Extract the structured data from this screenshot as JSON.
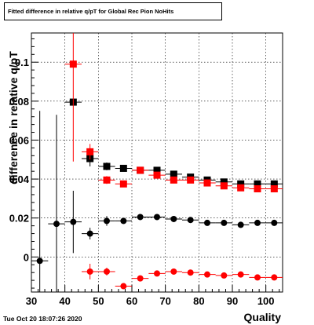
{
  "title": "Fitted difference in relative q/pT for Global Rec Pion NoHits",
  "timestamp": "Tue Oct 20 18:07:26 2020",
  "chart_data": {
    "type": "scatter",
    "title": "Fitted difference in relative q/pT for Global Rec Pion NoHits",
    "xlabel": "Quality",
    "ylabel": "difference in relative q/pT",
    "xlim": [
      30,
      105
    ],
    "ylim": [
      -0.018,
      0.115
    ],
    "grid": true,
    "x_ticks": [
      30,
      40,
      50,
      60,
      70,
      80,
      90,
      100
    ],
    "x_tick_labels": [
      "30",
      "40",
      "50",
      "60",
      "70",
      "80",
      "90",
      "100"
    ],
    "y_ticks": [
      0,
      0.02,
      0.04,
      0.06,
      0.08,
      0.1
    ],
    "y_tick_labels": [
      "0",
      "0.02",
      "0.04",
      "0.06",
      "0.08",
      "0.1"
    ],
    "series": [
      {
        "color": "#000000",
        "marker": "circle",
        "points": [
          {
            "x": 32.5,
            "y": -0.002,
            "err": 0.077
          },
          {
            "x": 37.5,
            "y": 0.017,
            "err": 0.056
          },
          {
            "x": 42.5,
            "y": 0.018,
            "err": 0.016
          },
          {
            "x": 47.5,
            "y": 0.012,
            "err": 0.003
          },
          {
            "x": 52.5,
            "y": 0.0185,
            "err": 0.0025
          },
          {
            "x": 57.5,
            "y": 0.0185,
            "err": 0.0015
          },
          {
            "x": 62.5,
            "y": 0.0205,
            "err": 0.001
          },
          {
            "x": 67.5,
            "y": 0.0205,
            "err": 0.001
          },
          {
            "x": 72.5,
            "y": 0.0195,
            "err": 0.001
          },
          {
            "x": 77.5,
            "y": 0.019,
            "err": 0.001
          },
          {
            "x": 82.5,
            "y": 0.0175,
            "err": 0.001
          },
          {
            "x": 87.5,
            "y": 0.0175,
            "err": 0.001
          },
          {
            "x": 92.5,
            "y": 0.0165,
            "err": 0.001
          },
          {
            "x": 97.5,
            "y": 0.0175,
            "err": 0.001
          },
          {
            "x": 102.5,
            "y": 0.0175,
            "err": 0.001
          }
        ]
      },
      {
        "color": "#000000",
        "marker": "square",
        "points": [
          {
            "x": 42.5,
            "y": 0.0795,
            "err": 0.0
          },
          {
            "x": 47.5,
            "y": 0.0505,
            "err": 0.004
          },
          {
            "x": 52.5,
            "y": 0.0465,
            "err": 0.002
          },
          {
            "x": 57.5,
            "y": 0.0455,
            "err": 0.001
          },
          {
            "x": 62.5,
            "y": 0.0445,
            "err": 0.001
          },
          {
            "x": 67.5,
            "y": 0.0445,
            "err": 0.001
          },
          {
            "x": 72.5,
            "y": 0.0425,
            "err": 0.001
          },
          {
            "x": 77.5,
            "y": 0.041,
            "err": 0.001
          },
          {
            "x": 82.5,
            "y": 0.0395,
            "err": 0.001
          },
          {
            "x": 87.5,
            "y": 0.0385,
            "err": 0.001
          },
          {
            "x": 92.5,
            "y": 0.0375,
            "err": 0.001
          },
          {
            "x": 97.5,
            "y": 0.0375,
            "err": 0.001
          },
          {
            "x": 102.5,
            "y": 0.0375,
            "err": 0.001
          }
        ]
      },
      {
        "color": "#ff0000",
        "marker": "square",
        "points": [
          {
            "x": 42.5,
            "y": 0.099,
            "err": 0.05
          },
          {
            "x": 47.5,
            "y": 0.054,
            "err": 0.004
          },
          {
            "x": 52.5,
            "y": 0.0395,
            "err": 0.002
          },
          {
            "x": 57.5,
            "y": 0.0375,
            "err": 0.001
          },
          {
            "x": 62.5,
            "y": 0.0445,
            "err": 0.001
          },
          {
            "x": 67.5,
            "y": 0.042,
            "err": 0.001
          },
          {
            "x": 72.5,
            "y": 0.0395,
            "err": 0.001
          },
          {
            "x": 77.5,
            "y": 0.0395,
            "err": 0.001
          },
          {
            "x": 82.5,
            "y": 0.038,
            "err": 0.001
          },
          {
            "x": 87.5,
            "y": 0.0365,
            "err": 0.001
          },
          {
            "x": 92.5,
            "y": 0.0355,
            "err": 0.001
          },
          {
            "x": 97.5,
            "y": 0.035,
            "err": 0.001
          },
          {
            "x": 102.5,
            "y": 0.035,
            "err": 0.001
          }
        ]
      },
      {
        "color": "#ff0000",
        "marker": "circle",
        "points": [
          {
            "x": 47.5,
            "y": -0.0075,
            "err": 0.004
          },
          {
            "x": 52.5,
            "y": -0.0075,
            "err": 0.002
          },
          {
            "x": 57.5,
            "y": -0.015,
            "err": 0.001
          },
          {
            "x": 62.5,
            "y": -0.011,
            "err": 0.001
          },
          {
            "x": 67.5,
            "y": -0.0085,
            "err": 0.001
          },
          {
            "x": 72.5,
            "y": -0.0075,
            "err": 0.001
          },
          {
            "x": 77.5,
            "y": -0.008,
            "err": 0.001
          },
          {
            "x": 82.5,
            "y": -0.009,
            "err": 0.001
          },
          {
            "x": 87.5,
            "y": -0.0095,
            "err": 0.001
          },
          {
            "x": 92.5,
            "y": -0.009,
            "err": 0.001
          },
          {
            "x": 97.5,
            "y": -0.0105,
            "err": 0.001
          },
          {
            "x": 102.5,
            "y": -0.0105,
            "err": 0.001
          }
        ]
      }
    ]
  }
}
